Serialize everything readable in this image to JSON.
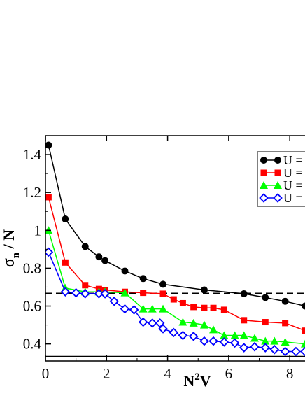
{
  "chart_data": {
    "type": "line",
    "xlabel": "N",
    "xlabel_superscript": "2",
    "xlabel_suffix": "V",
    "ylabel": "σ",
    "ylabel_subscript": "n",
    "ylabel_suffix": " / N",
    "xlim": [
      0,
      8.5
    ],
    "ylim": [
      0.31,
      1.5
    ],
    "xticks": [
      0,
      2,
      4,
      6,
      8
    ],
    "xtick_labels": [
      "0",
      "2",
      "4",
      "6",
      "8"
    ],
    "yticks": [
      0.4,
      0.6,
      0.8,
      1.0,
      1.2,
      1.4
    ],
    "ytick_labels": [
      "0.4",
      "0.6",
      "0.8",
      "1",
      "1.2",
      "1.4"
    ],
    "legend_position": "top-right",
    "series": [
      {
        "name": "U =",
        "color": "#000000",
        "marker": "circle-filled",
        "x": [
          0.1,
          0.65,
          1.3,
          1.75,
          1.95,
          2.6,
          3.2,
          3.85,
          5.2,
          6.5,
          7.2,
          7.85,
          8.5
        ],
        "y": [
          1.45,
          1.06,
          0.915,
          0.86,
          0.84,
          0.785,
          0.745,
          0.715,
          0.685,
          0.665,
          0.645,
          0.625,
          0.6
        ]
      },
      {
        "name": "U =",
        "color": "#ff0000",
        "marker": "square-filled",
        "x": [
          0.1,
          0.65,
          1.3,
          1.75,
          1.95,
          2.6,
          3.2,
          3.85,
          4.2,
          4.5,
          4.85,
          5.2,
          5.5,
          5.85,
          6.5,
          7.2,
          7.85,
          8.5
        ],
        "y": [
          1.175,
          0.83,
          0.71,
          0.69,
          0.685,
          0.675,
          0.67,
          0.665,
          0.635,
          0.615,
          0.595,
          0.59,
          0.59,
          0.58,
          0.525,
          0.515,
          0.51,
          0.47
        ]
      },
      {
        "name": "U =",
        "color": "#00ff00",
        "marker": "triangle-filled",
        "x": [
          0.1,
          0.65,
          1.3,
          1.75,
          1.95,
          2.6,
          3.2,
          3.5,
          3.85,
          4.5,
          4.85,
          5.2,
          5.5,
          5.85,
          6.2,
          6.5,
          6.85,
          7.2,
          7.5,
          7.85,
          8.5
        ],
        "y": [
          1.0,
          0.695,
          0.675,
          0.675,
          0.675,
          0.67,
          0.585,
          0.585,
          0.585,
          0.515,
          0.51,
          0.5,
          0.475,
          0.445,
          0.445,
          0.445,
          0.43,
          0.415,
          0.415,
          0.41,
          0.4
        ]
      },
      {
        "name": "U =",
        "color": "#0000ff",
        "marker": "diamond-open",
        "x": [
          0.1,
          0.65,
          1.0,
          1.3,
          1.75,
          1.95,
          2.25,
          2.6,
          2.9,
          3.2,
          3.5,
          3.75,
          3.85,
          4.2,
          4.5,
          4.85,
          5.2,
          5.5,
          5.85,
          6.2,
          6.5,
          6.85,
          7.2,
          7.5,
          7.85,
          8.2,
          8.5
        ],
        "y": [
          0.885,
          0.675,
          0.67,
          0.665,
          0.665,
          0.665,
          0.625,
          0.585,
          0.58,
          0.515,
          0.51,
          0.51,
          0.48,
          0.46,
          0.445,
          0.44,
          0.415,
          0.415,
          0.41,
          0.405,
          0.38,
          0.385,
          0.38,
          0.37,
          0.36,
          0.36,
          0.36
        ]
      }
    ],
    "reference_lines": [
      {
        "y": 0.6667,
        "style": "dashed",
        "color": "#000000"
      },
      {
        "y": 0.3333,
        "style": "solid",
        "color": "#000000"
      }
    ]
  }
}
